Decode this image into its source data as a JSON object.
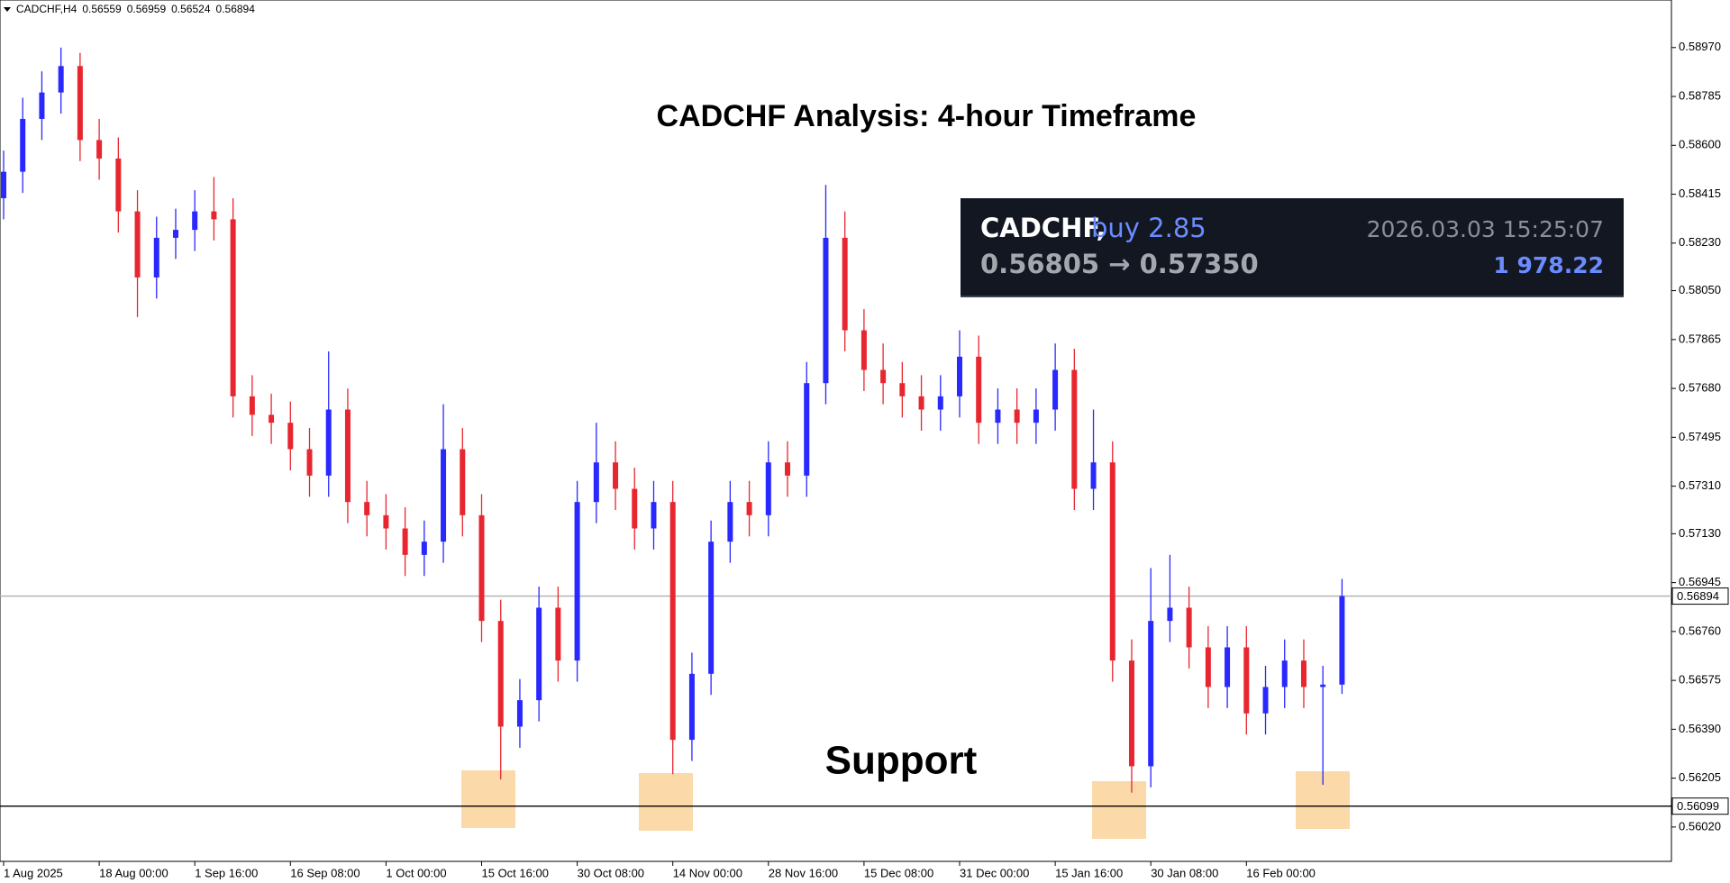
{
  "chart_data": {
    "type": "candlestick",
    "symbol": "CADCHF,H4",
    "header_ohlc": [
      0.56559,
      0.56959,
      0.56524,
      0.56894
    ],
    "title": "CADCHF Analysis: 4-hour Timeframe",
    "annotation": "Support",
    "bull_color": "#2828ff",
    "bear_color": "#e8262f",
    "categories": [
      "1 Aug 2025",
      null,
      null,
      null,
      null,
      "18 Aug 00:00",
      null,
      null,
      null,
      null,
      "1 Sep 16:00",
      null,
      null,
      null,
      null,
      "16 Sep 08:00",
      null,
      null,
      null,
      null,
      "1 Oct 00:00",
      null,
      null,
      null,
      null,
      "15 Oct 16:00",
      null,
      null,
      null,
      null,
      "30 Oct 08:00",
      null,
      null,
      null,
      null,
      "14 Nov 00:00",
      null,
      null,
      null,
      null,
      "28 Nov 16:00",
      null,
      null,
      null,
      null,
      "15 Dec 08:00",
      null,
      null,
      null,
      null,
      "31 Dec 00:00",
      null,
      null,
      null,
      null,
      "15 Jan 16:00",
      null,
      null,
      null,
      null,
      "30 Jan 08:00",
      null,
      null,
      null,
      null,
      "16 Feb 00:00",
      null,
      null,
      null,
      null,
      null
    ],
    "open": [
      0.584,
      0.585,
      0.587,
      0.588,
      0.589,
      0.5862,
      0.5855,
      0.5835,
      0.581,
      0.5825,
      0.5828,
      0.5835,
      0.5832,
      0.5765,
      0.5758,
      0.5755,
      0.5745,
      0.5735,
      0.576,
      0.5725,
      0.572,
      0.5715,
      0.5705,
      0.571,
      0.5745,
      0.572,
      0.568,
      0.564,
      0.565,
      0.5685,
      0.5665,
      0.5725,
      0.574,
      0.573,
      0.5715,
      0.5725,
      0.5635,
      0.566,
      0.571,
      0.5725,
      0.572,
      0.574,
      0.5735,
      0.577,
      0.5825,
      0.579,
      0.5775,
      0.577,
      0.5765,
      0.576,
      0.5765,
      0.578,
      0.5755,
      0.576,
      0.5755,
      0.576,
      0.5775,
      0.573,
      0.574,
      0.5665,
      0.5625,
      0.568,
      0.5685,
      0.567,
      0.5655,
      0.567,
      0.5645,
      0.5655,
      0.5665,
      0.5655,
      0.56559
    ],
    "high": [
      0.5858,
      0.5878,
      0.5888,
      0.5897,
      0.5895,
      0.587,
      0.5863,
      0.5843,
      0.5833,
      0.5836,
      0.5843,
      0.5848,
      0.584,
      0.5773,
      0.5766,
      0.5763,
      0.5753,
      0.5782,
      0.5768,
      0.5733,
      0.5728,
      0.5723,
      0.5718,
      0.5762,
      0.5753,
      0.5728,
      0.5688,
      0.5658,
      0.5693,
      0.5693,
      0.5733,
      0.5755,
      0.5748,
      0.5738,
      0.5733,
      0.5733,
      0.5668,
      0.5718,
      0.5733,
      0.5733,
      0.5748,
      0.5748,
      0.5778,
      0.5845,
      0.5835,
      0.5798,
      0.5785,
      0.5778,
      0.5773,
      0.5773,
      0.579,
      0.5788,
      0.5768,
      0.5768,
      0.5768,
      0.5785,
      0.5783,
      0.576,
      0.5748,
      0.5673,
      0.57,
      0.5705,
      0.5693,
      0.5678,
      0.5678,
      0.5678,
      0.5663,
      0.5673,
      0.5673,
      0.5663,
      0.56959
    ],
    "low": [
      0.5832,
      0.5842,
      0.5862,
      0.5872,
      0.5854,
      0.5847,
      0.5827,
      0.5795,
      0.5802,
      0.5817,
      0.582,
      0.5824,
      0.5757,
      0.575,
      0.5747,
      0.5737,
      0.5727,
      0.5727,
      0.5717,
      0.5712,
      0.5707,
      0.5697,
      0.5697,
      0.5702,
      0.5712,
      0.5672,
      0.562,
      0.5632,
      0.5642,
      0.5657,
      0.5657,
      0.5717,
      0.5722,
      0.5707,
      0.5707,
      0.5622,
      0.5627,
      0.5652,
      0.5702,
      0.5712,
      0.5712,
      0.5727,
      0.5727,
      0.5762,
      0.5782,
      0.5767,
      0.5762,
      0.5757,
      0.5752,
      0.5752,
      0.5757,
      0.5747,
      0.5747,
      0.5747,
      0.5747,
      0.5752,
      0.5722,
      0.5722,
      0.5657,
      0.5615,
      0.5617,
      0.5672,
      0.5662,
      0.5647,
      0.5647,
      0.5637,
      0.5637,
      0.5647,
      0.5647,
      0.5618,
      0.56524
    ],
    "close": [
      0.585,
      0.587,
      0.588,
      0.589,
      0.5862,
      0.5855,
      0.5835,
      0.581,
      0.5825,
      0.5828,
      0.5835,
      0.5832,
      0.5765,
      0.5758,
      0.5755,
      0.5745,
      0.5735,
      0.576,
      0.5725,
      0.572,
      0.5715,
      0.5705,
      0.571,
      0.5745,
      0.572,
      0.568,
      0.564,
      0.565,
      0.5685,
      0.5665,
      0.5725,
      0.574,
      0.573,
      0.5715,
      0.5725,
      0.5635,
      0.566,
      0.571,
      0.5725,
      0.572,
      0.574,
      0.5735,
      0.577,
      0.5825,
      0.579,
      0.5775,
      0.577,
      0.5765,
      0.576,
      0.5765,
      0.578,
      0.5755,
      0.576,
      0.5755,
      0.576,
      0.5775,
      0.573,
      0.574,
      0.5665,
      0.5625,
      0.568,
      0.5685,
      0.567,
      0.5655,
      0.567,
      0.5645,
      0.5655,
      0.5665,
      0.5655,
      0.56559,
      0.56894
    ],
    "ylim": [
      0.5589,
      0.5915
    ],
    "yticks": [
      {
        "value": 0.5897,
        "label": "0.58970"
      },
      {
        "value": 0.58785,
        "label": "0.58785"
      },
      {
        "value": 0.586,
        "label": "0.58600"
      },
      {
        "value": 0.58415,
        "label": "0.58415"
      },
      {
        "value": 0.5823,
        "label": "0.58230"
      },
      {
        "value": 0.5805,
        "label": "0.58050"
      },
      {
        "value": 0.57865,
        "label": "0.57865"
      },
      {
        "value": 0.5768,
        "label": "0.57680"
      },
      {
        "value": 0.57495,
        "label": "0.57495"
      },
      {
        "value": 0.5731,
        "label": "0.57310"
      },
      {
        "value": 0.5713,
        "label": "0.57130"
      },
      {
        "value": 0.56945,
        "label": "0.56945"
      },
      {
        "value": 0.5676,
        "label": "0.56760"
      },
      {
        "value": 0.56575,
        "label": "0.56575"
      },
      {
        "value": 0.5639,
        "label": "0.56390"
      },
      {
        "value": 0.56205,
        "label": "0.56205"
      },
      {
        "value": 0.5602,
        "label": "0.56020"
      }
    ],
    "current_price": 0.56894,
    "support_level": 0.56099
  },
  "signal": {
    "symbol": "CADCHF,",
    "order": "buy 2.85",
    "time": "2026.03.03 15:25:07",
    "prices": "0.56805 → 0.57350",
    "profit": "1 978.22"
  }
}
